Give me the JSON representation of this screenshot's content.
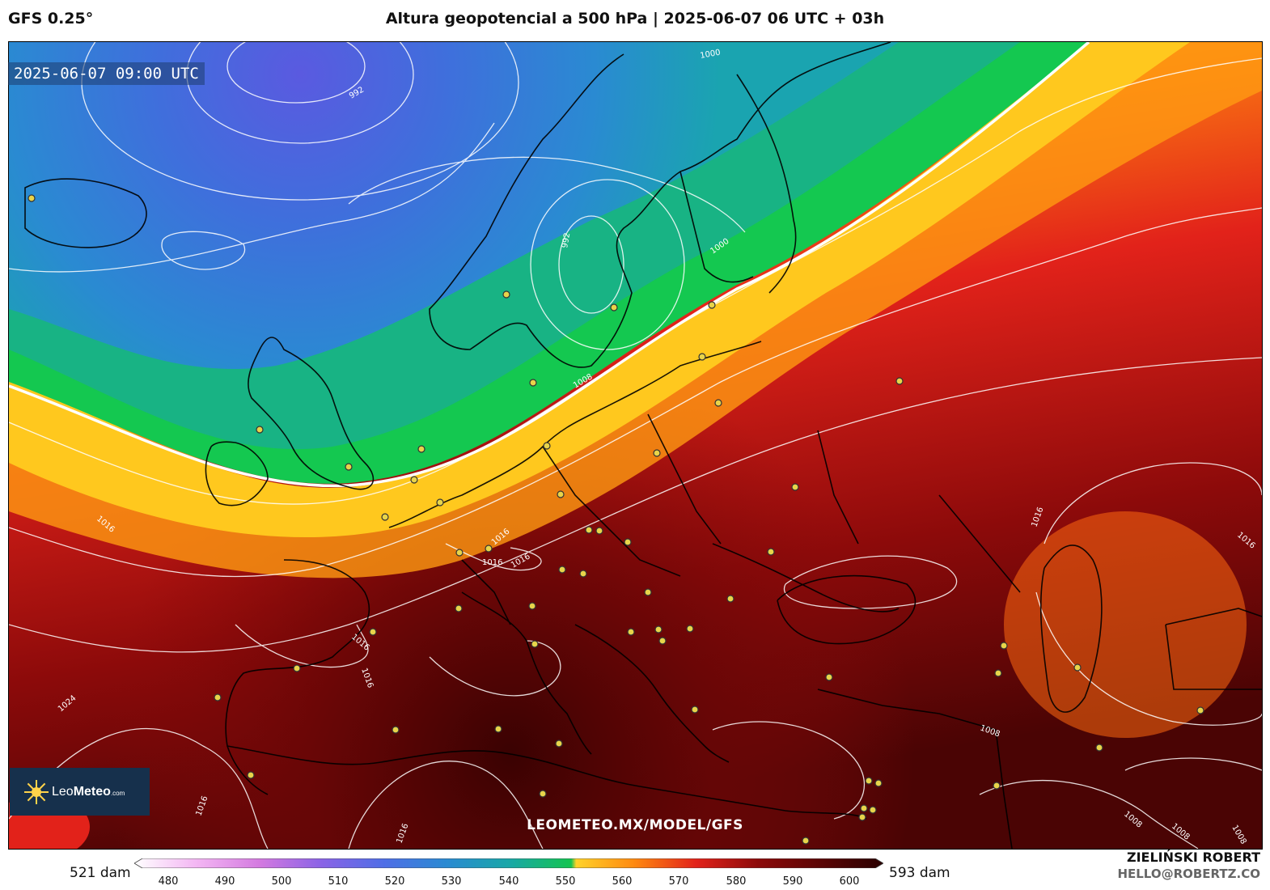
{
  "header": {
    "model": "GFS 0.25°",
    "title": "Altura geopotencial a 500 hPa | 2025-06-07 06 UTC + 03h"
  },
  "map": {
    "timestamp": "2025-06-07 09:00 UTC",
    "watermark": "LEOMETEO.MX/MODEL/GFS",
    "logo": {
      "brand_leo": "Leo",
      "brand_meteo": "Meteo",
      "brand_suffix": ".com"
    },
    "pressure_labels": [
      "992",
      "992",
      "1000",
      "1000",
      "1008",
      "1016",
      "1016",
      "1016",
      "1016",
      "1016",
      "1016",
      "1016",
      "1024",
      "1016",
      "1016",
      "1008",
      "1008",
      "1008",
      "1008",
      "1016"
    ],
    "colors": {
      "low_purple": "#5a5ae0",
      "blue": "#2e7fd0",
      "teal": "#16a8a0",
      "green": "#14c850",
      "yellow": "#ffd22a",
      "orange": "#ff8a10",
      "red": "#e2221a",
      "dark_red": "#8c0a0a",
      "maroon": "#4a0404"
    }
  },
  "colorbar": {
    "min_label": "521 dam",
    "max_label": "593 dam",
    "ticks": [
      "480",
      "490",
      "500",
      "510",
      "520",
      "530",
      "540",
      "550",
      "560",
      "570",
      "580",
      "590",
      "600"
    ],
    "gradient": [
      "#ffffff",
      "#f3b6f3",
      "#d47ae0",
      "#8a63e6",
      "#4f6ee6",
      "#2a8ad2",
      "#19a7a8",
      "#14c450",
      "#ffd22a",
      "#ff8a10",
      "#e2221a",
      "#8c0a0a",
      "#2a0000"
    ]
  },
  "credits": {
    "author": "ZIELIŃSKI ROBERT",
    "email": "HELLO@ROBERTZ.CO"
  }
}
